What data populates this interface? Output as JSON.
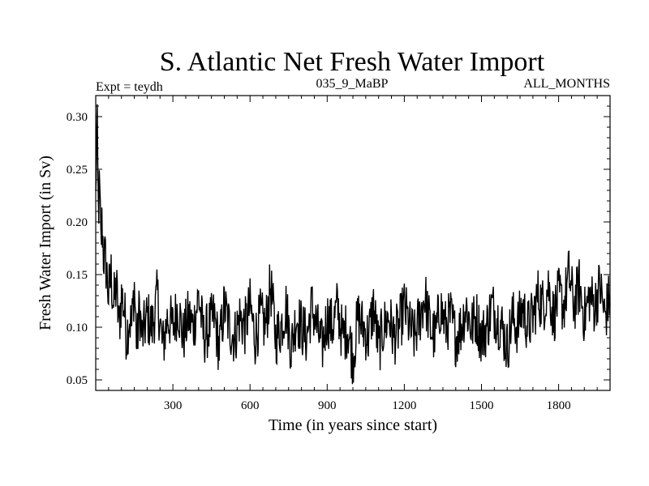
{
  "chart_data": {
    "type": "line",
    "title": "S. Atlantic Net Fresh Water Import",
    "subtitle_left": "Expt = teydh",
    "subtitle_center": "035_9_MaBP",
    "subtitle_right": "ALL_MONTHS",
    "xlabel": "Time (in years since start)",
    "ylabel": "Fresh Water Import (in Sv)",
    "xlim": [
      0,
      2000
    ],
    "ylim": [
      0.04,
      0.32
    ],
    "xticks": [
      300,
      600,
      900,
      1200,
      1500,
      1800
    ],
    "xtick_labels": [
      "300",
      "600",
      "900",
      "1200",
      "1500",
      "1800"
    ],
    "yticks": [
      0.05,
      0.1,
      0.15,
      0.2,
      0.25,
      0.3
    ],
    "ytick_labels": [
      "0.05",
      "0.10",
      "0.15",
      "0.20",
      "0.25",
      "0.30"
    ],
    "series": [
      {
        "name": "Fresh Water Import",
        "color": "#000000",
        "x": [
          0,
          5,
          10,
          15,
          20,
          25,
          30,
          40,
          50,
          60,
          70,
          80,
          90,
          100,
          110,
          120,
          130,
          140,
          150,
          160,
          170,
          180,
          200,
          220,
          240,
          260,
          280,
          300,
          320,
          340,
          360,
          380,
          400,
          420,
          440,
          460,
          480,
          500,
          520,
          540,
          560,
          580,
          600,
          620,
          640,
          660,
          680,
          700,
          720,
          740,
          760,
          780,
          800,
          820,
          840,
          860,
          880,
          900,
          920,
          940,
          960,
          980,
          1000,
          1020,
          1040,
          1060,
          1080,
          1100,
          1120,
          1140,
          1160,
          1180,
          1200,
          1220,
          1240,
          1260,
          1280,
          1300,
          1320,
          1340,
          1360,
          1380,
          1400,
          1420,
          1440,
          1460,
          1480,
          1500,
          1520,
          1540,
          1560,
          1580,
          1600,
          1620,
          1640,
          1660,
          1680,
          1700,
          1720,
          1740,
          1760,
          1780,
          1800,
          1820,
          1840,
          1860,
          1880,
          1900,
          1920,
          1940,
          1960,
          1980,
          2000
        ],
        "y": [
          0.22,
          0.3,
          0.21,
          0.23,
          0.18,
          0.2,
          0.17,
          0.16,
          0.13,
          0.15,
          0.12,
          0.14,
          0.1,
          0.13,
          0.12,
          0.09,
          0.11,
          0.1,
          0.14,
          0.08,
          0.12,
          0.09,
          0.11,
          0.1,
          0.13,
          0.08,
          0.11,
          0.1,
          0.12,
          0.09,
          0.11,
          0.1,
          0.13,
          0.09,
          0.1,
          0.11,
          0.08,
          0.12,
          0.1,
          0.09,
          0.11,
          0.1,
          0.12,
          0.09,
          0.11,
          0.1,
          0.14,
          0.09,
          0.1,
          0.12,
          0.08,
          0.11,
          0.1,
          0.09,
          0.12,
          0.1,
          0.08,
          0.11,
          0.1,
          0.12,
          0.09,
          0.1,
          0.07,
          0.11,
          0.1,
          0.09,
          0.12,
          0.08,
          0.1,
          0.11,
          0.09,
          0.1,
          0.12,
          0.1,
          0.09,
          0.11,
          0.13,
          0.1,
          0.09,
          0.12,
          0.1,
          0.11,
          0.09,
          0.1,
          0.12,
          0.1,
          0.11,
          0.09,
          0.1,
          0.12,
          0.11,
          0.1,
          0.08,
          0.11,
          0.1,
          0.12,
          0.1,
          0.11,
          0.13,
          0.12,
          0.14,
          0.11,
          0.13,
          0.12,
          0.15,
          0.12,
          0.14,
          0.11,
          0.13,
          0.12,
          0.14,
          0.11,
          0.13
        ]
      }
    ]
  }
}
